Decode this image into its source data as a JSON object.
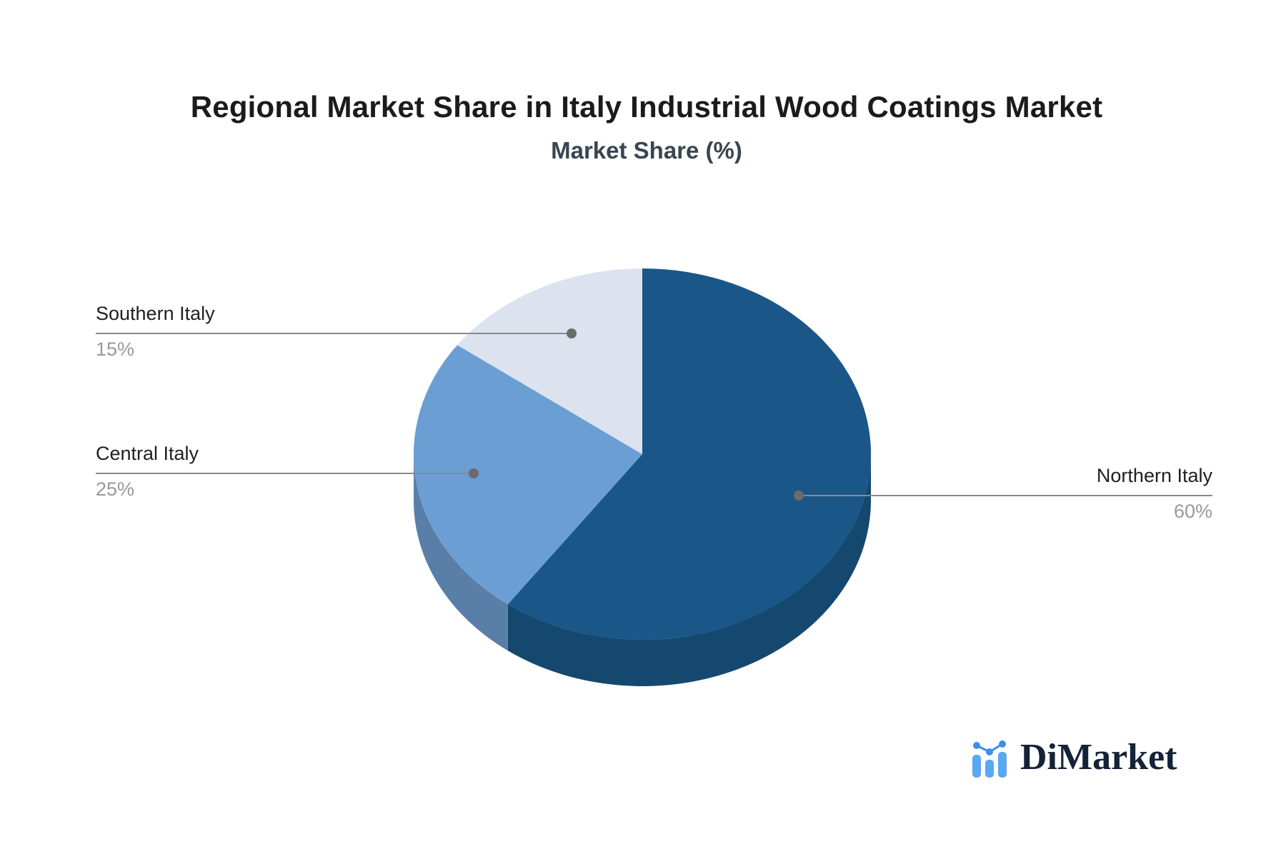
{
  "header": {
    "title": "Regional Market Share in Italy Industrial Wood Coatings Market",
    "subtitle": "Market Share (%)"
  },
  "chart_data": {
    "type": "pie",
    "style": "3d",
    "title": "Regional Market Share in Italy Industrial Wood Coatings Market",
    "subtitle": "Market Share (%)",
    "unit": "%",
    "labels": [
      "Northern Italy",
      "Central Italy",
      "Southern Italy"
    ],
    "values": [
      60,
      25,
      15
    ],
    "start_angle_deg": 0,
    "direction": "clockwise",
    "legend_position": "none",
    "label_style": "callout-lines",
    "slices": [
      {
        "label": "Northern Italy",
        "value": 60,
        "display_value": "60%",
        "color_top": "#1A5687",
        "color_side": "#15486E"
      },
      {
        "label": "Central Italy",
        "value": 25,
        "display_value": "25%",
        "color_top": "#6B9FD3",
        "color_side": "#597FA8"
      },
      {
        "label": "Southern Italy",
        "value": 15,
        "display_value": "15%",
        "color_top": "#DCE3EF",
        "color_side": "#C3CBDA"
      }
    ],
    "connector_color": "#8A8A8A",
    "connector_dot_color": "#6B6B6B"
  },
  "callouts": {
    "southern": {
      "label": "Southern Italy",
      "value": "15%"
    },
    "central": {
      "label": "Central Italy",
      "value": "25%"
    },
    "northern": {
      "label": "Northern Italy",
      "value": "60%"
    }
  },
  "branding": {
    "logo_text": "DiMarket",
    "logo_icon": "bar-chart-trend-icon",
    "logo_text_color": "#152238",
    "icon_bar_color": "#5AA7F2",
    "icon_dot_color": "#3E8EE8"
  }
}
